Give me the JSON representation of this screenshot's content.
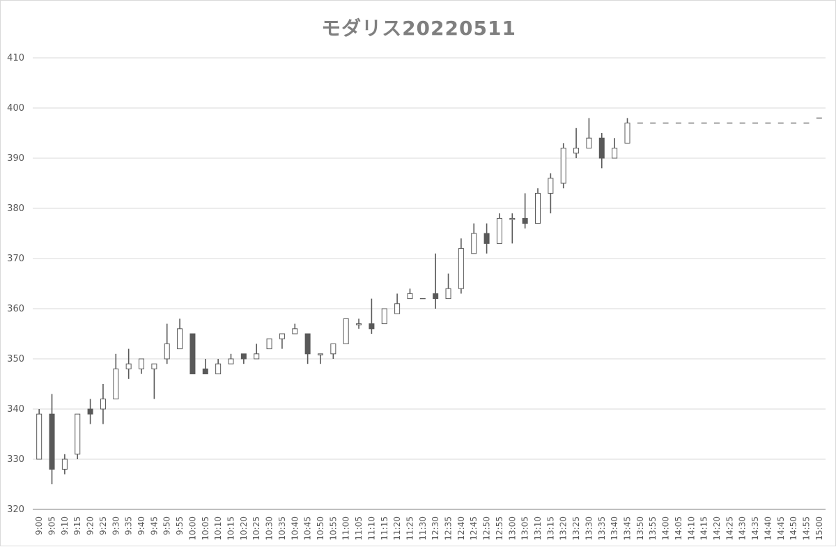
{
  "chart_data": {
    "type": "candlestick",
    "title": "モダリス20220511",
    "xlabel": "",
    "ylabel": "",
    "ylim": [
      320,
      410
    ],
    "yticks": [
      320,
      330,
      340,
      350,
      360,
      370,
      380,
      390,
      400,
      410
    ],
    "grid": true,
    "legend": "none",
    "colors": {
      "up": "#ffffff",
      "down": "#595959",
      "outline": "#595959",
      "grid": "#d9d9d9",
      "title": "#7f7f7f"
    },
    "categories": [
      "9:00",
      "9:05",
      "9:10",
      "9:15",
      "9:20",
      "9:25",
      "9:30",
      "9:35",
      "9:40",
      "9:45",
      "9:50",
      "9:55",
      "10:00",
      "10:05",
      "10:10",
      "10:15",
      "10:20",
      "10:25",
      "10:30",
      "10:35",
      "10:40",
      "10:45",
      "10:50",
      "10:55",
      "11:00",
      "11:05",
      "11:10",
      "11:15",
      "11:20",
      "11:25",
      "11:30",
      "12:30",
      "12:35",
      "12:40",
      "12:45",
      "12:50",
      "12:55",
      "13:00",
      "13:05",
      "13:10",
      "13:15",
      "13:20",
      "13:25",
      "13:30",
      "13:35",
      "13:40",
      "13:45",
      "13:50",
      "13:55",
      "14:00",
      "14:05",
      "14:10",
      "14:15",
      "14:20",
      "14:25",
      "14:30",
      "14:35",
      "14:40",
      "14:45",
      "14:50",
      "14:55",
      "15:00"
    ],
    "candles": [
      {
        "t": "9:00",
        "o": 330,
        "h": 340,
        "l": 330,
        "c": 339
      },
      {
        "t": "9:05",
        "o": 339,
        "h": 343,
        "l": 325,
        "c": 328
      },
      {
        "t": "9:10",
        "o": 328,
        "h": 331,
        "l": 327,
        "c": 330
      },
      {
        "t": "9:15",
        "o": 331,
        "h": 339,
        "l": 330,
        "c": 339
      },
      {
        "t": "9:20",
        "o": 340,
        "h": 342,
        "l": 337,
        "c": 339
      },
      {
        "t": "9:25",
        "o": 340,
        "h": 345,
        "l": 337,
        "c": 342
      },
      {
        "t": "9:30",
        "o": 342,
        "h": 351,
        "l": 342,
        "c": 348
      },
      {
        "t": "9:35",
        "o": 348,
        "h": 352,
        "l": 346,
        "c": 349
      },
      {
        "t": "9:40",
        "o": 348,
        "h": 350,
        "l": 347,
        "c": 350
      },
      {
        "t": "9:45",
        "o": 348,
        "h": 349,
        "l": 342,
        "c": 349
      },
      {
        "t": "9:50",
        "o": 350,
        "h": 357,
        "l": 349,
        "c": 353
      },
      {
        "t": "9:55",
        "o": 352,
        "h": 358,
        "l": 352,
        "c": 356
      },
      {
        "t": "10:00",
        "o": 355,
        "h": 355,
        "l": 347,
        "c": 347
      },
      {
        "t": "10:05",
        "o": 348,
        "h": 350,
        "l": 347,
        "c": 347
      },
      {
        "t": "10:10",
        "o": 347,
        "h": 350,
        "l": 347,
        "c": 349
      },
      {
        "t": "10:15",
        "o": 349,
        "h": 351,
        "l": 349,
        "c": 350
      },
      {
        "t": "10:20",
        "o": 351,
        "h": 351,
        "l": 349,
        "c": 350
      },
      {
        "t": "10:25",
        "o": 350,
        "h": 353,
        "l": 350,
        "c": 351
      },
      {
        "t": "10:30",
        "o": 352,
        "h": 354,
        "l": 352,
        "c": 354
      },
      {
        "t": "10:35",
        "o": 354,
        "h": 355,
        "l": 352,
        "c": 355
      },
      {
        "t": "10:40",
        "o": 355,
        "h": 357,
        "l": 355,
        "c": 356
      },
      {
        "t": "10:45",
        "o": 355,
        "h": 355,
        "l": 349,
        "c": 351
      },
      {
        "t": "10:50",
        "o": 351,
        "h": 351,
        "l": 349,
        "c": 351
      },
      {
        "t": "10:55",
        "o": 351,
        "h": 353,
        "l": 350,
        "c": 353
      },
      {
        "t": "11:00",
        "o": 353,
        "h": 358,
        "l": 353,
        "c": 358
      },
      {
        "t": "11:05",
        "o": 357,
        "h": 358,
        "l": 356,
        "c": 357
      },
      {
        "t": "11:10",
        "o": 357,
        "h": 362,
        "l": 355,
        "c": 356
      },
      {
        "t": "11:15",
        "o": 357,
        "h": 360,
        "l": 357,
        "c": 360
      },
      {
        "t": "11:20",
        "o": 359,
        "h": 363,
        "l": 359,
        "c": 361
      },
      {
        "t": "11:25",
        "o": 362,
        "h": 364,
        "l": 362,
        "c": 363
      },
      {
        "t": "11:30",
        "o": 362,
        "h": 362,
        "l": 362,
        "c": 362
      },
      {
        "t": "12:30",
        "o": 363,
        "h": 371,
        "l": 360,
        "c": 362
      },
      {
        "t": "12:35",
        "o": 362,
        "h": 367,
        "l": 362,
        "c": 364
      },
      {
        "t": "12:40",
        "o": 364,
        "h": 374,
        "l": 363,
        "c": 372
      },
      {
        "t": "12:45",
        "o": 371,
        "h": 377,
        "l": 371,
        "c": 375
      },
      {
        "t": "12:50",
        "o": 375,
        "h": 377,
        "l": 371,
        "c": 373
      },
      {
        "t": "12:55",
        "o": 373,
        "h": 379,
        "l": 373,
        "c": 378
      },
      {
        "t": "13:00",
        "o": 378,
        "h": 379,
        "l": 373,
        "c": 378
      },
      {
        "t": "13:05",
        "o": 378,
        "h": 383,
        "l": 376,
        "c": 377
      },
      {
        "t": "13:10",
        "o": 377,
        "h": 384,
        "l": 377,
        "c": 383
      },
      {
        "t": "13:15",
        "o": 383,
        "h": 387,
        "l": 379,
        "c": 386
      },
      {
        "t": "13:20",
        "o": 385,
        "h": 393,
        "l": 384,
        "c": 392
      },
      {
        "t": "13:25",
        "o": 391,
        "h": 396,
        "l": 390,
        "c": 392
      },
      {
        "t": "13:30",
        "o": 392,
        "h": 398,
        "l": 392,
        "c": 394
      },
      {
        "t": "13:35",
        "o": 394,
        "h": 395,
        "l": 388,
        "c": 390
      },
      {
        "t": "13:40",
        "o": 390,
        "h": 394,
        "l": 390,
        "c": 392
      },
      {
        "t": "13:45",
        "o": 393,
        "h": 398,
        "l": 393,
        "c": 397
      },
      {
        "t": "13:50",
        "o": 397,
        "h": 397,
        "l": 397,
        "c": 397
      },
      {
        "t": "13:55",
        "o": 397,
        "h": 397,
        "l": 397,
        "c": 397
      },
      {
        "t": "14:00",
        "o": 397,
        "h": 397,
        "l": 397,
        "c": 397
      },
      {
        "t": "14:05",
        "o": 397,
        "h": 397,
        "l": 397,
        "c": 397
      },
      {
        "t": "14:10",
        "o": 397,
        "h": 397,
        "l": 397,
        "c": 397
      },
      {
        "t": "14:15",
        "o": 397,
        "h": 397,
        "l": 397,
        "c": 397
      },
      {
        "t": "14:20",
        "o": 397,
        "h": 397,
        "l": 397,
        "c": 397
      },
      {
        "t": "14:25",
        "o": 397,
        "h": 397,
        "l": 397,
        "c": 397
      },
      {
        "t": "14:30",
        "o": 397,
        "h": 397,
        "l": 397,
        "c": 397
      },
      {
        "t": "14:35",
        "o": 397,
        "h": 397,
        "l": 397,
        "c": 397
      },
      {
        "t": "14:40",
        "o": 397,
        "h": 397,
        "l": 397,
        "c": 397
      },
      {
        "t": "14:45",
        "o": 397,
        "h": 397,
        "l": 397,
        "c": 397
      },
      {
        "t": "14:50",
        "o": 397,
        "h": 397,
        "l": 397,
        "c": 397
      },
      {
        "t": "14:55",
        "o": 397,
        "h": 397,
        "l": 397,
        "c": 397
      },
      {
        "t": "15:00",
        "o": 398,
        "h": 398,
        "l": 398,
        "c": 398
      }
    ]
  }
}
